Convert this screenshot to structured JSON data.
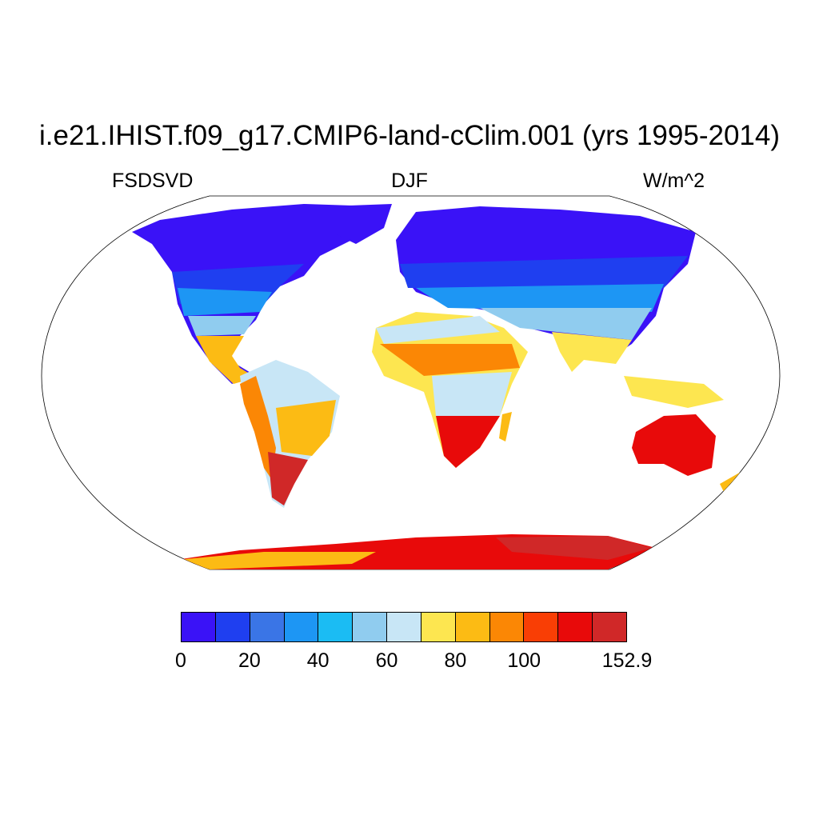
{
  "title": "i.e21.IHIST.f09_g17.CMIP6-land-cClim.001 (yrs 1995-2014)",
  "variable": "FSDSVD",
  "season": "DJF",
  "units": "W/m^2",
  "colorbar": {
    "colors": [
      "#3a12f7",
      "#1f3ff0",
      "#3a75e6",
      "#1d96f4",
      "#1bbcf3",
      "#90ccef",
      "#c8e6f6",
      "#fde650",
      "#fcbb14",
      "#fb8705",
      "#f93e05",
      "#e80a0a",
      "#d02828"
    ],
    "tick_labels": [
      "0",
      "20",
      "40",
      "60",
      "80",
      "100",
      "152.9"
    ]
  }
}
